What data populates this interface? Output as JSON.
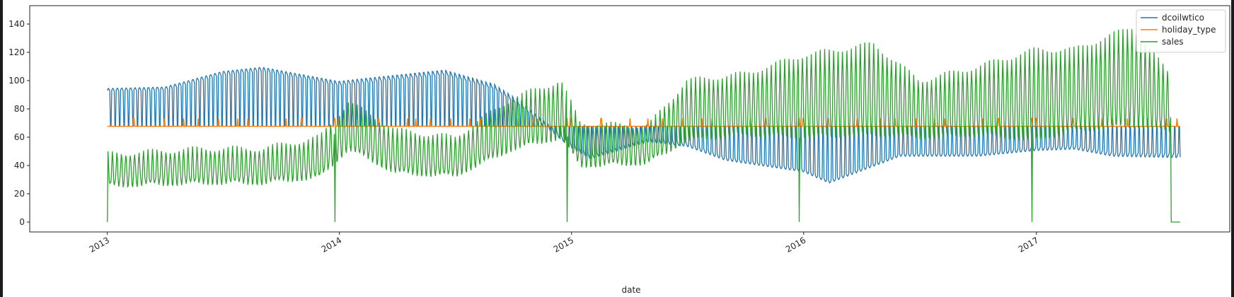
{
  "chart_data": {
    "type": "line",
    "title": "",
    "xlabel": "date",
    "ylabel": "",
    "x_range": [
      "2012-09-01",
      "2017-11-01"
    ],
    "ylim": [
      -7,
      153
    ],
    "x_ticks": [
      "2013",
      "2014",
      "2015",
      "2016",
      "2017"
    ],
    "y_ticks": [
      0,
      20,
      40,
      60,
      80,
      100,
      120,
      140
    ],
    "grid": false,
    "legend_position": "top-right",
    "series": [
      {
        "name": "dcoilwtico",
        "color": "#1f77b4",
        "style": "weekly oscillation between baseline 67.7 and the oil price",
        "baseline": 67.7,
        "x": [
          "2013-01-01",
          "2013-04-01",
          "2013-07-01",
          "2013-09-01",
          "2013-12-31",
          "2014-03-01",
          "2014-06-15",
          "2014-09-01",
          "2014-10-15",
          "2014-12-31",
          "2015-01-31",
          "2015-05-01",
          "2015-07-01",
          "2015-09-01",
          "2015-12-31",
          "2016-02-10",
          "2016-06-01",
          "2016-10-01",
          "2016-12-31",
          "2017-03-01",
          "2017-05-01",
          "2017-08-15"
        ],
        "values": [
          93,
          94,
          105,
          108,
          98,
          101,
          106,
          96,
          83,
          54,
          46,
          58,
          55,
          45,
          37,
          29,
          48,
          48,
          52,
          53,
          48,
          47
        ]
      },
      {
        "name": "holiday_type",
        "color": "#ff7f0e",
        "baseline": 67.7,
        "spike_height": 73.3,
        "spike_dates": [
          "2013-02-11",
          "2013-02-12",
          "2013-04-01",
          "2013-05-01",
          "2013-05-24",
          "2013-06-25",
          "2013-07-25",
          "2013-08-10",
          "2013-10-09",
          "2013-11-02",
          "2013-11-03",
          "2013-12-24",
          "2013-12-25",
          "2013-12-31",
          "2014-01-01",
          "2014-03-03",
          "2014-03-04",
          "2014-04-18",
          "2014-05-01",
          "2014-05-24",
          "2014-06-25",
          "2014-07-25",
          "2014-08-10",
          "2014-10-09",
          "2014-11-02",
          "2014-11-03",
          "2014-12-24",
          "2014-12-25",
          "2014-12-31",
          "2015-01-01",
          "2015-02-16",
          "2015-02-17",
          "2015-04-03",
          "2015-05-01",
          "2015-05-24",
          "2015-06-25",
          "2015-07-25",
          "2015-08-10",
          "2015-10-09",
          "2015-11-02",
          "2015-11-03",
          "2015-12-24",
          "2015-12-25",
          "2015-12-31",
          "2016-01-01",
          "2016-02-08",
          "2016-02-09",
          "2016-03-25",
          "2016-05-01",
          "2016-05-24",
          "2016-06-25",
          "2016-07-25",
          "2016-08-10",
          "2016-10-09",
          "2016-11-02",
          "2016-11-03",
          "2016-12-24",
          "2016-12-25",
          "2016-12-31",
          "2017-01-01",
          "2017-02-27",
          "2017-02-28",
          "2017-04-14",
          "2017-05-01",
          "2017-05-24",
          "2017-06-25",
          "2017-07-25",
          "2017-08-10"
        ]
      },
      {
        "name": "sales",
        "color": "#2ca02c",
        "style": "weekly oscillation with yearly drops to 0 on January 1",
        "x": [
          "2013-01-01",
          "2013-06-01",
          "2013-09-01",
          "2013-12-01",
          "2014-01-15",
          "2014-04-01",
          "2014-07-01",
          "2014-10-01",
          "2014-12-15",
          "2015-01-15",
          "2015-05-01",
          "2015-07-01",
          "2015-10-01",
          "2015-12-31",
          "2016-04-20",
          "2016-07-01",
          "2016-10-01",
          "2016-12-31",
          "2017-03-01",
          "2017-06-01",
          "2017-08-15"
        ],
        "trough": [
          26,
          28,
          28,
          32,
          52,
          35,
          33,
          52,
          60,
          40,
          42,
          58,
          62,
          60,
          62,
          60,
          62,
          58,
          65,
          68,
          64
        ],
        "peak": [
          48,
          52,
          52,
          60,
          85,
          65,
          60,
          88,
          100,
          70,
          68,
          100,
          105,
          118,
          126,
          100,
          110,
          122,
          122,
          138,
          95
        ],
        "zero_dates": [
          "2013-01-01",
          "2013-12-25",
          "2014-12-25",
          "2015-12-25",
          "2016-12-25",
          "2017-08-01",
          "2017-08-15"
        ]
      }
    ]
  }
}
